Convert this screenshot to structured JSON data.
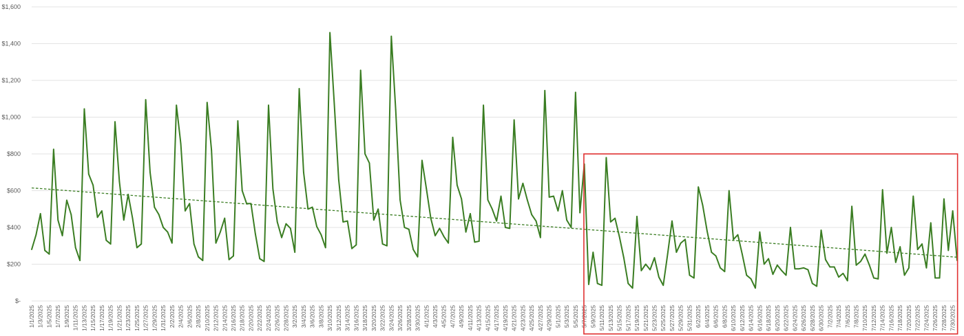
{
  "chart_data": {
    "type": "line",
    "title": "",
    "xlabel": "",
    "ylabel": "",
    "ylim": [
      0,
      1600
    ],
    "y_ticks": [
      {
        "value": 0,
        "label": "$-"
      },
      {
        "value": 200,
        "label": "$200"
      },
      {
        "value": 400,
        "label": "$400"
      },
      {
        "value": 600,
        "label": "$600"
      },
      {
        "value": 800,
        "label": "$800"
      },
      {
        "value": 1000,
        "label": "$1,000"
      },
      {
        "value": 1200,
        "label": "$1,200"
      },
      {
        "value": 1400,
        "label": "$1,400"
      },
      {
        "value": 1600,
        "label": "$1,600"
      }
    ],
    "grid": true,
    "x_start_date": "2025-01-01",
    "x_end_date": "2025-07-31",
    "x_tick_labels": [
      "1/1/2025",
      "1/3/2025",
      "1/5/2025",
      "1/7/2025",
      "1/9/2025",
      "1/11/2025",
      "1/13/2025",
      "1/15/2025",
      "1/17/2025",
      "1/19/2025",
      "1/21/2025",
      "1/23/2025",
      "1/25/2025",
      "1/27/2025",
      "1/29/2025",
      "1/31/2025",
      "2/2/2025",
      "2/4/2025",
      "2/6/2025",
      "2/8/2025",
      "2/10/2025",
      "2/12/2025",
      "2/14/2025",
      "2/16/2025",
      "2/18/2025",
      "2/20/2025",
      "2/22/2025",
      "2/24/2025",
      "2/26/2025",
      "2/28/2025",
      "3/2/2025",
      "3/4/2025",
      "3/6/2025",
      "3/8/2025",
      "3/10/2025",
      "3/12/2025",
      "3/14/2025",
      "3/16/2025",
      "3/18/2025",
      "3/20/2025",
      "3/22/2025",
      "3/24/2025",
      "3/26/2025",
      "3/28/2025",
      "3/30/2025",
      "4/1/2025",
      "4/3/2025",
      "4/5/2025",
      "4/7/2025",
      "4/9/2025",
      "4/11/2025",
      "4/13/2025",
      "4/15/2025",
      "4/17/2025",
      "4/19/2025",
      "4/21/2025",
      "4/23/2025",
      "4/25/2025",
      "4/27/2025",
      "4/29/2025",
      "5/1/2025",
      "5/3/2025",
      "5/5/2025",
      "5/7/2025",
      "5/9/2025",
      "5/11/2025",
      "5/13/2025",
      "5/15/2025",
      "5/17/2025",
      "5/19/2025",
      "5/21/2025",
      "5/23/2025",
      "5/25/2025",
      "5/27/2025",
      "5/29/2025",
      "5/31/2025",
      "6/2/2025",
      "6/4/2025",
      "6/6/2025",
      "6/8/2025",
      "6/10/2025",
      "6/12/2025",
      "6/14/2025",
      "6/16/2025",
      "6/18/2025",
      "6/20/2025",
      "6/22/2025",
      "6/24/2025",
      "6/26/2025",
      "6/28/2025",
      "6/30/2025",
      "7/2/2025",
      "7/4/2025",
      "7/6/2025",
      "7/8/2025",
      "7/10/2025",
      "7/12/2025",
      "7/14/2025",
      "7/16/2025",
      "7/18/2025",
      "7/20/2025",
      "7/22/2025",
      "7/24/2025",
      "7/26/2025",
      "7/28/2025",
      "7/30/2025"
    ],
    "series": [
      {
        "name": "",
        "color": "#3a7d22",
        "values": [
          280,
          360,
          475,
          275,
          255,
          825,
          440,
          355,
          548,
          470,
          290,
          220,
          1045,
          690,
          630,
          455,
          490,
          330,
          310,
          975,
          650,
          440,
          580,
          450,
          290,
          310,
          1095,
          700,
          510,
          470,
          400,
          375,
          315,
          1065,
          855,
          490,
          530,
          310,
          240,
          220,
          1080,
          820,
          315,
          375,
          450,
          225,
          245,
          980,
          600,
          530,
          530,
          365,
          230,
          215,
          1065,
          610,
          430,
          345,
          420,
          395,
          265,
          1155,
          700,
          500,
          510,
          405,
          360,
          290,
          1460,
          1070,
          660,
          430,
          435,
          285,
          305,
          1255,
          800,
          750,
          440,
          500,
          310,
          300,
          1440,
          1040,
          550,
          400,
          390,
          280,
          240,
          765,
          610,
          450,
          355,
          395,
          350,
          315,
          890,
          630,
          555,
          375,
          475,
          320,
          325,
          1065,
          550,
          500,
          435,
          570,
          400,
          395,
          985,
          555,
          640,
          550,
          470,
          435,
          345,
          1145,
          565,
          570,
          490,
          600,
          440,
          400,
          1135,
          480,
          745,
          90,
          265,
          95,
          85,
          780,
          430,
          450,
          350,
          235,
          95,
          70,
          460,
          165,
          200,
          170,
          235,
          130,
          85,
          255,
          435,
          265,
          315,
          335,
          140,
          125,
          620,
          520,
          380,
          265,
          245,
          180,
          160,
          600,
          335,
          360,
          255,
          140,
          120,
          70,
          375,
          200,
          230,
          145,
          195,
          165,
          140,
          400,
          175,
          175,
          180,
          170,
          95,
          80,
          385,
          225,
          185,
          185,
          130,
          150,
          110,
          515,
          195,
          215,
          255,
          195,
          125,
          120,
          605,
          260,
          400,
          210,
          295,
          140,
          180,
          570,
          280,
          310,
          180,
          425,
          125,
          125,
          555,
          275,
          490,
          220
        ]
      }
    ],
    "trendline": {
      "style": "dashed",
      "color": "#3a7d22",
      "start_value": 615,
      "end_value": 238
    },
    "highlight_box": {
      "color": "#e03030",
      "from_label": "5/8/2025",
      "to_label": "7/30/2025"
    }
  }
}
